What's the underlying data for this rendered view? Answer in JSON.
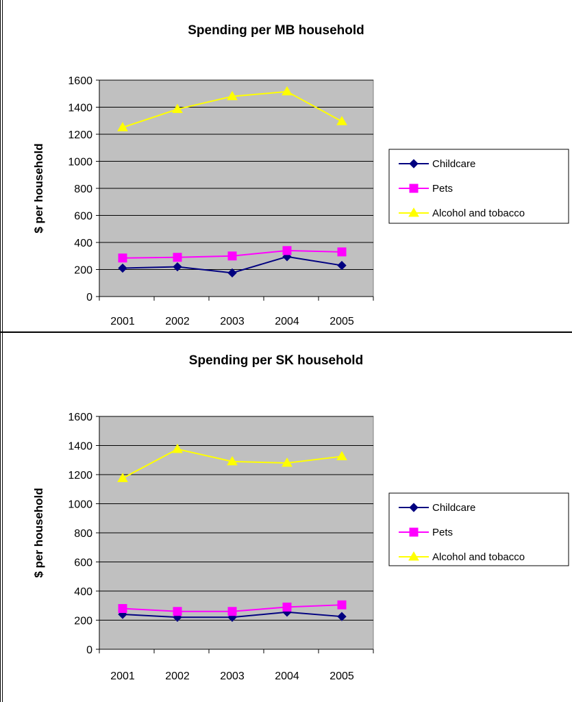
{
  "charts": [
    {
      "type": "line",
      "title": "Spending per MB household",
      "ylabel": "$ per household",
      "xlabel": "",
      "categories": [
        "2001",
        "2002",
        "2003",
        "2004",
        "2005"
      ],
      "ylim": [
        0,
        1600
      ],
      "yticks": [
        0,
        200,
        400,
        600,
        800,
        1000,
        1200,
        1400,
        1600
      ],
      "grid": true,
      "legend": "right",
      "plot_bg": "#c0c0c0",
      "series": [
        {
          "name": "Childcare",
          "color": "#000080",
          "marker": "diamond",
          "values": [
            210,
            220,
            175,
            295,
            230
          ]
        },
        {
          "name": "Pets",
          "color": "#ff00ff",
          "marker": "square",
          "values": [
            285,
            290,
            300,
            340,
            330
          ]
        },
        {
          "name": "Alcohol and tobacco",
          "color": "#ffff00",
          "marker": "triangle",
          "values": [
            1250,
            1385,
            1480,
            1515,
            1295
          ]
        }
      ]
    },
    {
      "type": "line",
      "title": "Spending per SK household",
      "ylabel": "$ per household",
      "xlabel": "",
      "categories": [
        "2001",
        "2002",
        "2003",
        "2004",
        "2005"
      ],
      "ylim": [
        0,
        1600
      ],
      "yticks": [
        0,
        200,
        400,
        600,
        800,
        1000,
        1200,
        1400,
        1600
      ],
      "grid": true,
      "legend": "right",
      "plot_bg": "#c0c0c0",
      "series": [
        {
          "name": "Childcare",
          "color": "#000080",
          "marker": "diamond",
          "values": [
            240,
            220,
            220,
            255,
            225
          ]
        },
        {
          "name": "Pets",
          "color": "#ff00ff",
          "marker": "square",
          "values": [
            280,
            260,
            260,
            290,
            305
          ]
        },
        {
          "name": "Alcohol and tobacco",
          "color": "#ffff00",
          "marker": "triangle",
          "values": [
            1175,
            1375,
            1290,
            1280,
            1325
          ]
        }
      ]
    }
  ],
  "chart_data": [
    {
      "type": "line",
      "title": "Spending per MB household",
      "ylabel": "$ per household",
      "categories": [
        "2001",
        "2002",
        "2003",
        "2004",
        "2005"
      ],
      "ylim": [
        0,
        1600
      ],
      "series": [
        {
          "name": "Childcare",
          "values": [
            210,
            220,
            175,
            295,
            230
          ]
        },
        {
          "name": "Pets",
          "values": [
            285,
            290,
            300,
            340,
            330
          ]
        },
        {
          "name": "Alcohol and tobacco",
          "values": [
            1250,
            1385,
            1480,
            1515,
            1295
          ]
        }
      ]
    },
    {
      "type": "line",
      "title": "Spending per SK household",
      "ylabel": "$ per household",
      "categories": [
        "2001",
        "2002",
        "2003",
        "2004",
        "2005"
      ],
      "ylim": [
        0,
        1600
      ],
      "series": [
        {
          "name": "Childcare",
          "values": [
            240,
            220,
            220,
            255,
            225
          ]
        },
        {
          "name": "Pets",
          "values": [
            280,
            260,
            260,
            290,
            305
          ]
        },
        {
          "name": "Alcohol and tobacco",
          "values": [
            1175,
            1375,
            1290,
            1280,
            1325
          ]
        }
      ]
    }
  ]
}
